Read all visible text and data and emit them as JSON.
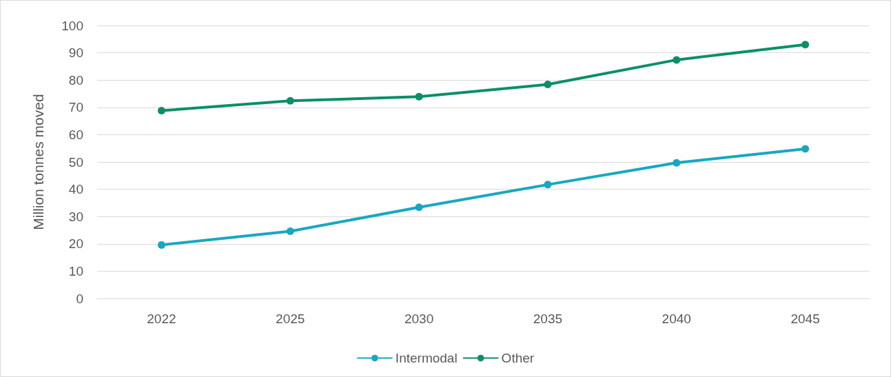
{
  "chart_data": {
    "type": "line",
    "ylabel": "Million tonnes moved",
    "categories": [
      "2022",
      "2025",
      "2030",
      "2035",
      "2040",
      "2045"
    ],
    "series": [
      {
        "name": "Intermodal",
        "color": "#17a8c0",
        "values": [
          19.6,
          24.6,
          33.4,
          41.7,
          49.7,
          54.8
        ]
      },
      {
        "name": "Other",
        "color": "#0b8f68",
        "values": [
          68.8,
          72.4,
          73.9,
          78.4,
          87.4,
          93
        ]
      }
    ],
    "ylim": [
      0,
      100
    ],
    "yticks": [
      0,
      10,
      20,
      30,
      40,
      50,
      60,
      70,
      80,
      90,
      100
    ],
    "grid": "y",
    "legend": "bottom",
    "marker": "circle",
    "line_style": "solid"
  }
}
